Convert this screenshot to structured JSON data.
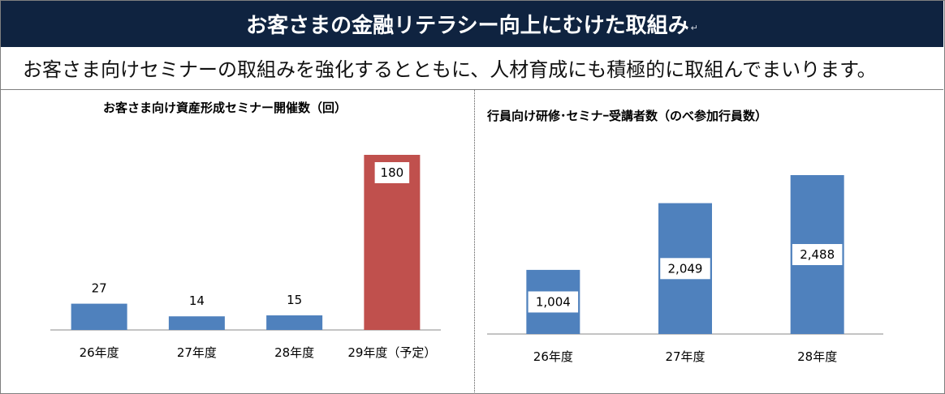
{
  "header": {
    "title": "お客さまの金融リテラシー向上にむけた取組み",
    "title_mark": "↵",
    "subtitle": "お客さま向けセミナーの取組みを強化するとともに、人材育成にも積極的に取組んでまいります。",
    "banner_color": "#0f2340"
  },
  "chart_data": [
    {
      "type": "bar",
      "title": "お客さま向け資産形成セミナー開催数（回）",
      "categories": [
        "26年度",
        "27年度",
        "28年度",
        "29年度（予定）"
      ],
      "values": [
        27,
        14,
        15,
        180
      ],
      "value_labels": [
        "27",
        "14",
        "15",
        "180"
      ],
      "colors": [
        "#4f81bd",
        "#4f81bd",
        "#4f81bd",
        "#c0504d"
      ],
      "label_position": [
        "outside",
        "outside",
        "outside",
        "inside"
      ],
      "ylim": [
        0,
        180
      ],
      "grid": false
    },
    {
      "type": "bar",
      "title": "行員向け研修･セミナｰ受講者数（のべ参加行員数）",
      "categories": [
        "26年度",
        "27年度",
        "28年度"
      ],
      "values": [
        1004,
        2049,
        2488
      ],
      "value_labels": [
        "1,004",
        "2,049",
        "2,488"
      ],
      "colors": [
        "#4f81bd",
        "#4f81bd",
        "#4f81bd"
      ],
      "label_position": [
        "inside",
        "inside",
        "inside"
      ],
      "ylim": [
        0,
        2488
      ],
      "grid": false
    }
  ]
}
